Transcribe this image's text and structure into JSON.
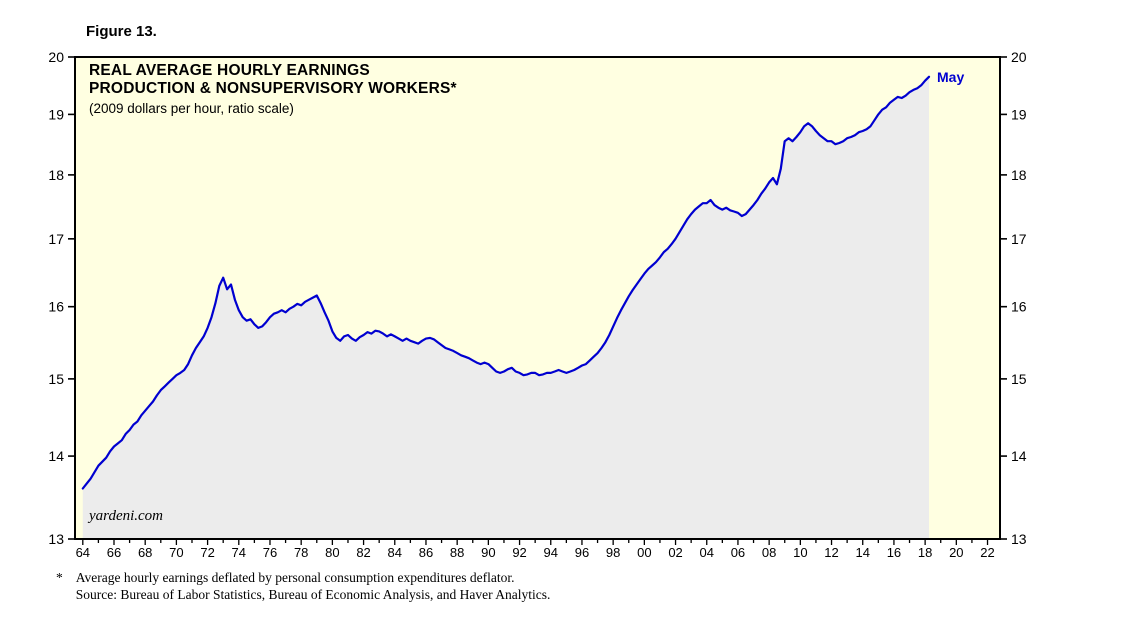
{
  "figure": {
    "label": "Figure 13."
  },
  "chart_data": {
    "type": "line",
    "title": "REAL AVERAGE HOURLY EARNINGS",
    "title_line2": "PRODUCTION & NONSUPERVISORY WORKERS*",
    "subtitle": "(2009 dollars per hour, ratio scale)",
    "watermark": "yardeni.com",
    "end_label": "May",
    "xlabel": "",
    "ylabel": "",
    "y_scale": "log",
    "grid": false,
    "legend": "none",
    "x_domain": [
      1963.5,
      2022.8
    ],
    "y_domain": [
      13,
      20
    ],
    "y_ticks": [
      13,
      14,
      15,
      16,
      17,
      18,
      19,
      20
    ],
    "x_tick_years": [
      1964,
      1966,
      1968,
      1970,
      1972,
      1974,
      1976,
      1978,
      1980,
      1982,
      1984,
      1986,
      1988,
      1990,
      1992,
      1994,
      1996,
      1998,
      2000,
      2002,
      2004,
      2006,
      2008,
      2010,
      2012,
      2014,
      2016,
      2018,
      2020,
      2022
    ],
    "x_tick_labels": [
      "64",
      "66",
      "68",
      "70",
      "72",
      "74",
      "76",
      "78",
      "80",
      "82",
      "84",
      "86",
      "88",
      "90",
      "92",
      "94",
      "96",
      "98",
      "00",
      "02",
      "04",
      "06",
      "08",
      "10",
      "12",
      "14",
      "16",
      "18",
      "20",
      "22"
    ],
    "colors": {
      "line": "#0000D0",
      "end_label": "#0000D0",
      "area_fill": "#ECECEC",
      "plot_bg": "#FFFFE1",
      "axis": "#000000"
    },
    "series": [
      {
        "name": "Real average hourly earnings, production & nonsupervisory workers",
        "unit": "2009 dollars per hour",
        "x_start": 1964.0,
        "x_step": 0.25,
        "x_end": 2018.25,
        "values": [
          13.6,
          13.66,
          13.72,
          13.8,
          13.88,
          13.93,
          13.98,
          14.06,
          14.12,
          14.16,
          14.2,
          14.28,
          14.33,
          14.4,
          14.44,
          14.52,
          14.58,
          14.64,
          14.7,
          14.78,
          14.85,
          14.9,
          14.95,
          15.0,
          15.05,
          15.08,
          15.12,
          15.2,
          15.32,
          15.42,
          15.5,
          15.58,
          15.7,
          15.85,
          16.05,
          16.3,
          16.42,
          16.25,
          16.32,
          16.1,
          15.95,
          15.85,
          15.8,
          15.82,
          15.75,
          15.7,
          15.72,
          15.78,
          15.85,
          15.9,
          15.92,
          15.95,
          15.92,
          15.97,
          16.0,
          16.04,
          16.02,
          16.07,
          16.1,
          16.13,
          16.16,
          16.05,
          15.92,
          15.8,
          15.65,
          15.56,
          15.52,
          15.58,
          15.6,
          15.55,
          15.52,
          15.57,
          15.6,
          15.64,
          15.62,
          15.66,
          15.65,
          15.62,
          15.58,
          15.61,
          15.58,
          15.55,
          15.52,
          15.55,
          15.52,
          15.5,
          15.48,
          15.52,
          15.55,
          15.56,
          15.54,
          15.5,
          15.46,
          15.42,
          15.4,
          15.38,
          15.35,
          15.32,
          15.3,
          15.28,
          15.25,
          15.22,
          15.2,
          15.22,
          15.2,
          15.15,
          15.1,
          15.08,
          15.1,
          15.13,
          15.15,
          15.1,
          15.08,
          15.05,
          15.06,
          15.08,
          15.08,
          15.05,
          15.06,
          15.08,
          15.08,
          15.1,
          15.12,
          15.1,
          15.08,
          15.1,
          15.12,
          15.15,
          15.18,
          15.2,
          15.25,
          15.3,
          15.35,
          15.42,
          15.5,
          15.6,
          15.72,
          15.84,
          15.95,
          16.05,
          16.15,
          16.24,
          16.32,
          16.4,
          16.48,
          16.55,
          16.6,
          16.65,
          16.72,
          16.8,
          16.85,
          16.92,
          17.0,
          17.1,
          17.2,
          17.3,
          17.38,
          17.45,
          17.5,
          17.55,
          17.55,
          17.6,
          17.52,
          17.48,
          17.45,
          17.48,
          17.44,
          17.42,
          17.4,
          17.35,
          17.38,
          17.45,
          17.52,
          17.6,
          17.7,
          17.78,
          17.88,
          17.95,
          17.85,
          18.1,
          18.55,
          18.6,
          18.55,
          18.62,
          18.7,
          18.8,
          18.85,
          18.8,
          18.72,
          18.65,
          18.6,
          18.55,
          18.55,
          18.5,
          18.52,
          18.55,
          18.6,
          18.62,
          18.65,
          18.7,
          18.72,
          18.75,
          18.8,
          18.9,
          19.0,
          19.08,
          19.12,
          19.2,
          19.25,
          19.3,
          19.28,
          19.32,
          19.38,
          19.42,
          19.45,
          19.5,
          19.58,
          19.65
        ]
      }
    ]
  },
  "footnote": {
    "marker": "*",
    "line1": "Average hourly earnings deflated by personal consumption expenditures deflator.",
    "line2": "Source: Bureau of Labor Statistics, Bureau of Economic Analysis, and Haver Analytics."
  }
}
